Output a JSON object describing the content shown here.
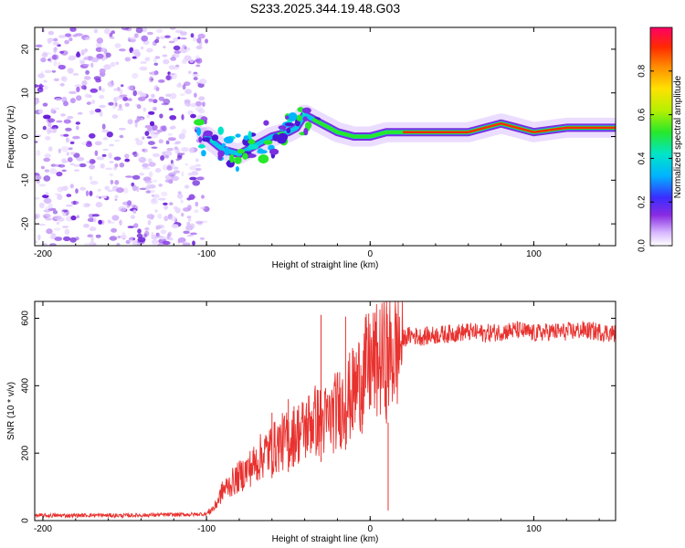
{
  "chart_data": [
    {
      "type": "heatmap",
      "title": "S233.2025.344.19.48.G03",
      "xlabel": "Height of straight line (km)",
      "ylabel": "Frequency (Hz)",
      "xlim": [
        -205,
        150
      ],
      "ylim": [
        -25,
        25
      ],
      "xticks": [
        -200,
        -100,
        0,
        100
      ],
      "yticks": [
        -20,
        -10,
        0,
        10,
        20
      ],
      "colorbar": {
        "label": "Normalized spectral amplitude",
        "range": [
          0,
          1
        ],
        "ticks": [
          "0.0",
          "0.2",
          "0.4",
          "0.6",
          "0.8"
        ]
      },
      "description_series": {
        "noise_region_x": [
          -205,
          -100
        ],
        "dominant_frequency_track": {
          "x": [
            -100,
            -90,
            -80,
            -70,
            -60,
            -50,
            -45,
            -40,
            -35,
            -30,
            -25,
            -20,
            -10,
            0,
            10,
            20,
            40,
            60,
            80,
            90,
            100,
            120,
            150
          ],
          "y": [
            0,
            -3,
            -4,
            -2,
            0,
            1,
            2,
            5,
            4,
            3,
            2,
            1,
            0,
            0,
            1,
            1,
            1,
            1,
            3,
            2,
            1,
            2,
            2
          ]
        }
      }
    },
    {
      "type": "line",
      "xlabel": "Height of straight line (km)",
      "ylabel": "SNR (10 * v/v)",
      "xlim": [
        -205,
        150
      ],
      "ylim": [
        0,
        650
      ],
      "xticks": [
        -200,
        -100,
        0,
        100
      ],
      "yticks": [
        0,
        200,
        400,
        600
      ],
      "series": [
        {
          "name": "SNR",
          "color": "#e8322f",
          "x": [
            -205,
            -190,
            -170,
            -150,
            -130,
            -110,
            -100,
            -95,
            -90,
            -85,
            -80,
            -75,
            -70,
            -65,
            -60,
            -55,
            -50,
            -45,
            -40,
            -35,
            -30,
            -25,
            -20,
            -15,
            -10,
            -5,
            0,
            5,
            10,
            15,
            20,
            25,
            30,
            40,
            50,
            60,
            70,
            80,
            90,
            100,
            110,
            120,
            130,
            140,
            150
          ],
          "values": [
            15,
            15,
            16,
            15,
            17,
            18,
            20,
            40,
            90,
            110,
            130,
            150,
            170,
            200,
            210,
            230,
            240,
            260,
            270,
            300,
            290,
            300,
            330,
            350,
            380,
            430,
            460,
            470,
            480,
            500,
            540,
            550,
            545,
            550,
            555,
            560,
            555,
            560,
            565,
            555,
            560,
            560,
            565,
            560,
            555
          ]
        }
      ]
    }
  ]
}
